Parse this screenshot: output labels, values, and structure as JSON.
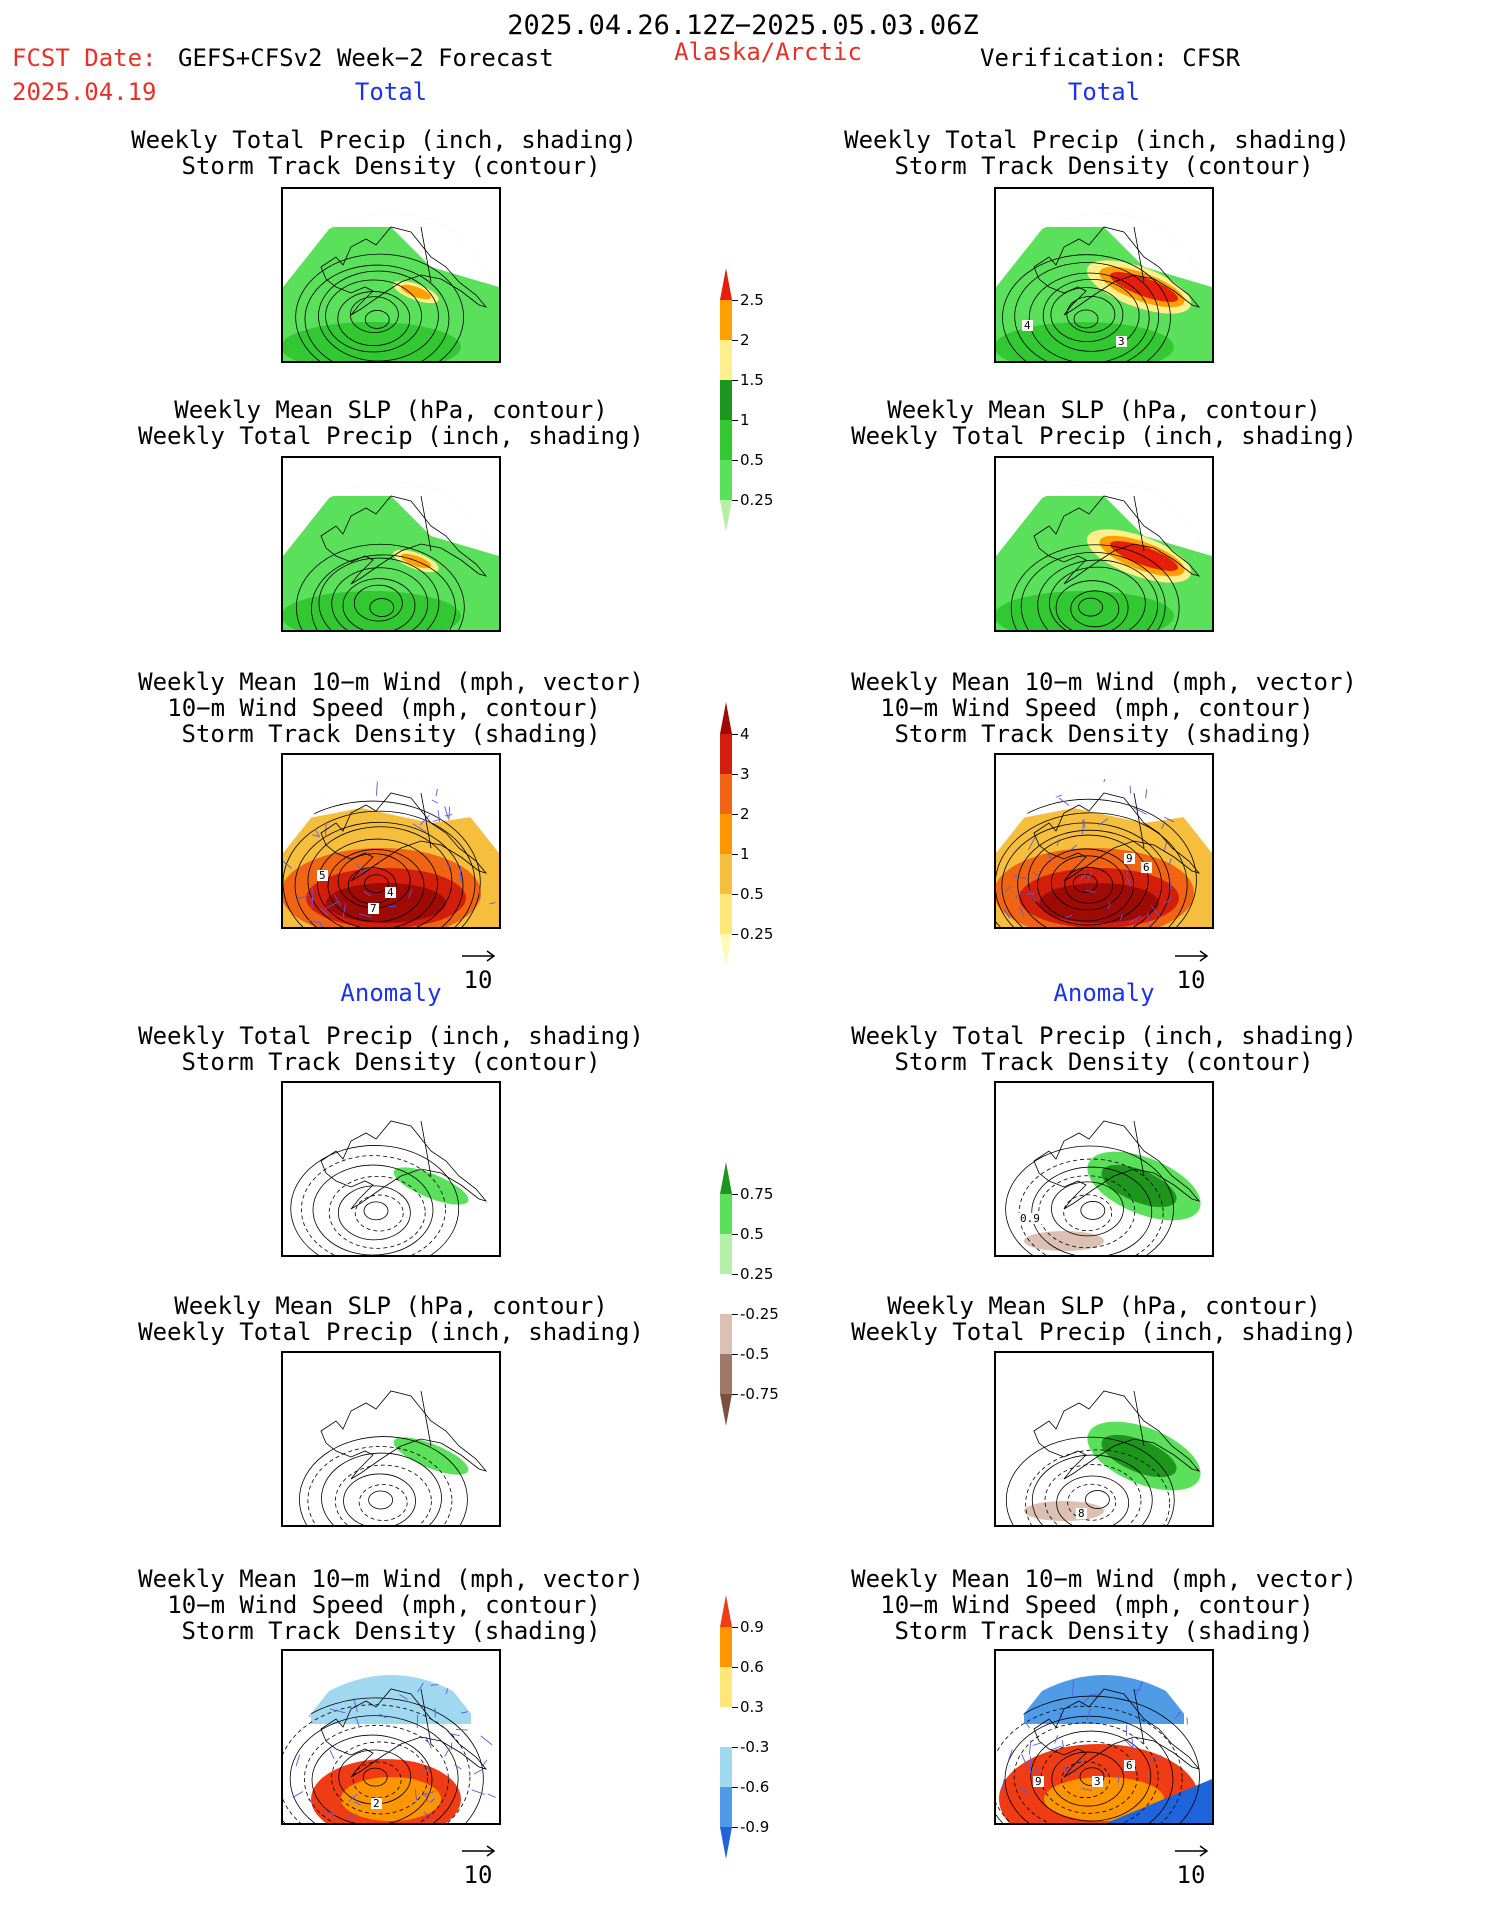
{
  "header": {
    "date_range": "2025.04.26.12Z−2025.05.03.06Z",
    "fcst_date_label": "FCST Date:",
    "fcst_product": "GEFS+CFSv2 Week−2 Forecast",
    "fcst_date": "2025.04.19",
    "region": "Alaska/Arctic",
    "verification": "Verification: CFSR"
  },
  "sections": {
    "total_left": "Total",
    "total_right": "Total",
    "anomaly_left": "Anomaly",
    "anomaly_right": "Anomaly"
  },
  "panel_titles": {
    "precip_track": [
      "Weekly Total Precip (inch, shading)",
      "Storm Track Density (contour)"
    ],
    "slp_precip": [
      "Weekly Mean SLP (hPa, contour)",
      "Weekly Total Precip (inch, shading)"
    ],
    "wind_track": [
      "Weekly Mean 10−m Wind (mph, vector)",
      "10−m Wind Speed (mph, contour)",
      "Storm Track Density (shading)"
    ]
  },
  "vector_ref": "10",
  "panel_labels": {
    "p1_right_a": "4",
    "p1_right_b": "3",
    "p3_left_a": "5",
    "p3_left_b": "4",
    "p3_left_c": "7",
    "p3_right_a": "9",
    "p3_right_b": "6",
    "p4_right_a": "0.9",
    "p5_right_a": "8",
    "p6_left_a": "2",
    "p6_right_a": "9",
    "p6_right_b": "3",
    "p6_right_c": "6"
  },
  "colors": {
    "title_red": "#e8302a",
    "title_blue": "#1c33e6"
  },
  "chart_data": [
    {
      "type": "heatmap",
      "name": "precip_total_colorbar",
      "levels": [
        "0.25",
        "0.5",
        "1",
        "1.5",
        "2",
        "2.5"
      ],
      "colors": [
        "#b4f0a8",
        "#5ae05a",
        "#32c832",
        "#1e961e",
        "#fff08c",
        "#ffa000",
        "#e61e0a"
      ]
    },
    {
      "type": "heatmap",
      "name": "storm_track_total_colorbar",
      "levels": [
        "0.25",
        "0.5",
        "1",
        "2",
        "3",
        "4"
      ],
      "colors": [
        "#fffab4",
        "#ffe678",
        "#f5be3c",
        "#ff9600",
        "#f06414",
        "#d21e0a",
        "#a00a05"
      ]
    },
    {
      "type": "heatmap",
      "name": "precip_anomaly_colorbar",
      "levels": [
        "-0.75",
        "-0.5",
        "-0.25",
        "0.25",
        "0.5",
        "0.75"
      ],
      "colors": [
        "#7a5040",
        "#a07868",
        "#dcc0b4",
        "#ffffff",
        "#b4f0a8",
        "#5ae05a",
        "#1e961e"
      ]
    },
    {
      "type": "heatmap",
      "name": "storm_track_anomaly_colorbar",
      "levels": [
        "-0.9",
        "-0.6",
        "-0.3",
        "0.3",
        "0.6",
        "0.9"
      ],
      "colors": [
        "#1e64dc",
        "#509be6",
        "#a0d8f0",
        "#ffffff",
        "#ffe678",
        "#ff9600",
        "#f03c14"
      ]
    }
  ]
}
